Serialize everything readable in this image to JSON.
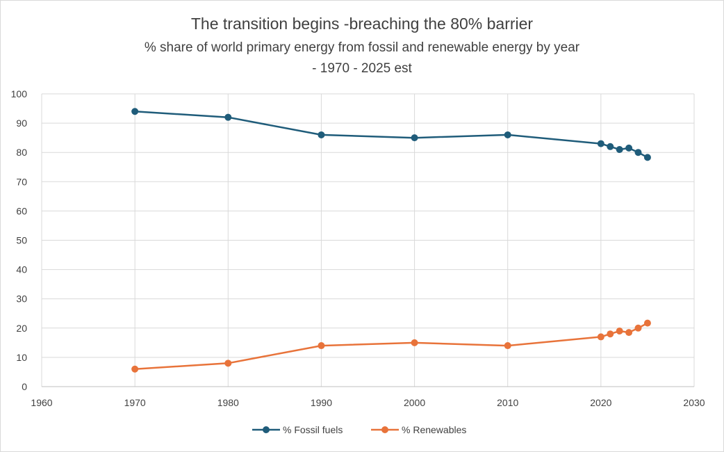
{
  "chart_data": {
    "type": "line",
    "title": "The transition begins -breaching the 80% barrier",
    "subtitle_line1": "% share of world primary energy from fossil and renewable energy by year",
    "subtitle_line2": "- 1970 - 2025 est",
    "xlim": [
      1960,
      2030
    ],
    "ylim": [
      0,
      100
    ],
    "x_ticks": [
      1960,
      1970,
      1980,
      1990,
      2000,
      2010,
      2020,
      2030
    ],
    "y_ticks": [
      0,
      10,
      20,
      30,
      40,
      50,
      60,
      70,
      80,
      90,
      100
    ],
    "grid": true,
    "legend_position": "bottom",
    "series": [
      {
        "name": "% Fossil fuels",
        "color": "#1f5c7a",
        "x": [
          1970,
          1980,
          1990,
          2000,
          2010,
          2020,
          2021,
          2022,
          2023,
          2024,
          2025
        ],
        "y": [
          94,
          92,
          86,
          85,
          86,
          83,
          82,
          81,
          81.5,
          80,
          78.3
        ]
      },
      {
        "name": "% Renewables",
        "color": "#e8733a",
        "x": [
          1970,
          1980,
          1990,
          2000,
          2010,
          2020,
          2021,
          2022,
          2023,
          2024,
          2025
        ],
        "y": [
          6,
          8,
          14,
          15,
          14,
          17,
          18,
          19,
          18.5,
          20,
          21.7
        ]
      }
    ]
  }
}
